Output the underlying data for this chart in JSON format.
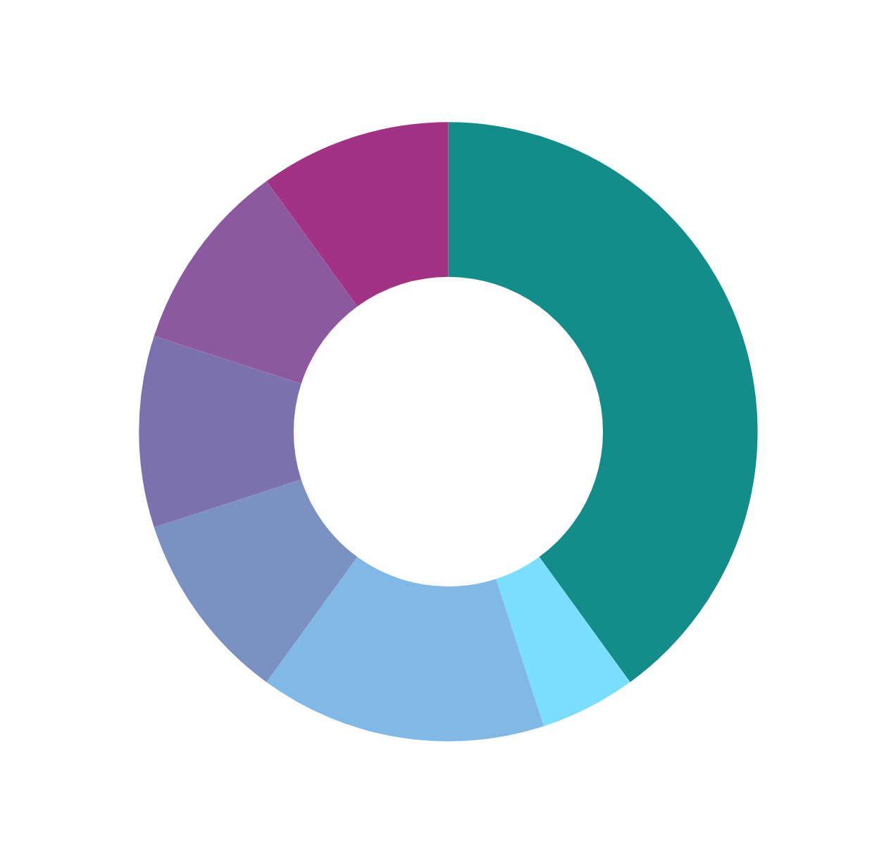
{
  "chart_data": {
    "type": "donut",
    "categories": [
      null,
      null,
      null,
      null,
      null,
      null,
      null
    ],
    "values": [
      40,
      5,
      15,
      10,
      10,
      10,
      10
    ],
    "colors": [
      "#138d8a",
      "#7adfff",
      "#80b9e6",
      "#7a91c2",
      "#7b72ad",
      "#8c58a0",
      "#a23384"
    ]
  }
}
